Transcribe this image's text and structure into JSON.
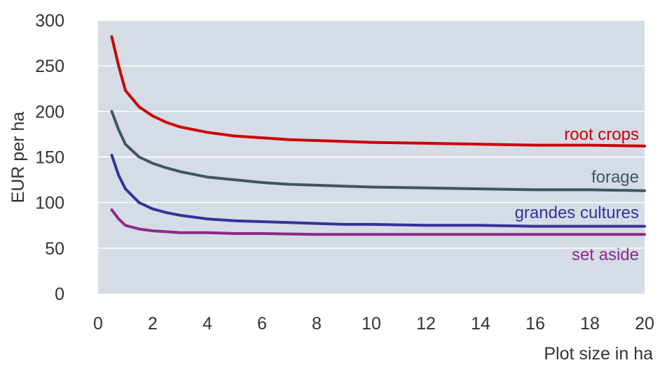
{
  "chart_data": {
    "type": "line",
    "xlabel": "Plot size in ha",
    "ylabel": "EUR per ha",
    "xlim": [
      0,
      20
    ],
    "ylim": [
      0,
      300
    ],
    "x_ticks": [
      0,
      2,
      4,
      6,
      8,
      10,
      12,
      14,
      16,
      18,
      20
    ],
    "y_ticks": [
      0,
      50,
      100,
      150,
      200,
      250,
      300
    ],
    "grid": "horizontal",
    "background": "#d5dce6",
    "legend": "inline-labels-right",
    "series": [
      {
        "name": "root crops",
        "color": "#cc0000",
        "x": [
          0.5,
          0.75,
          1,
          1.5,
          2,
          2.5,
          3,
          4,
          5,
          6,
          7,
          8,
          9,
          10,
          12,
          14,
          16,
          18,
          20
        ],
        "y": [
          282,
          250,
          223,
          205,
          195,
          188,
          183,
          177,
          173,
          171,
          169,
          168,
          167,
          166,
          165,
          164,
          163,
          163,
          162
        ]
      },
      {
        "name": "forage",
        "color": "#3f5660",
        "x": [
          0.5,
          0.75,
          1,
          1.5,
          2,
          2.5,
          3,
          4,
          5,
          6,
          7,
          8,
          9,
          10,
          12,
          14,
          16,
          18,
          20
        ],
        "y": [
          200,
          180,
          164,
          150,
          143,
          138,
          134,
          128,
          125,
          122,
          120,
          119,
          118,
          117,
          116,
          115,
          114,
          114,
          113
        ]
      },
      {
        "name": "grandes cultures",
        "color": "#333399",
        "x": [
          0.5,
          0.75,
          1,
          1.5,
          2,
          2.5,
          3,
          4,
          5,
          6,
          7,
          8,
          9,
          10,
          12,
          14,
          16,
          18,
          20
        ],
        "y": [
          152,
          130,
          115,
          100,
          93,
          89,
          86,
          82,
          80,
          79,
          78,
          77,
          76,
          76,
          75,
          75,
          74,
          74,
          74
        ]
      },
      {
        "name": "set aside",
        "color": "#8b2a8b",
        "x": [
          0.5,
          0.75,
          1,
          1.5,
          2,
          2.5,
          3,
          4,
          5,
          6,
          8,
          10,
          12,
          14,
          16,
          18,
          20
        ],
        "y": [
          92,
          82,
          75,
          71,
          69,
          68,
          67,
          67,
          66,
          66,
          65,
          65,
          65,
          65,
          65,
          65,
          65
        ]
      }
    ]
  }
}
